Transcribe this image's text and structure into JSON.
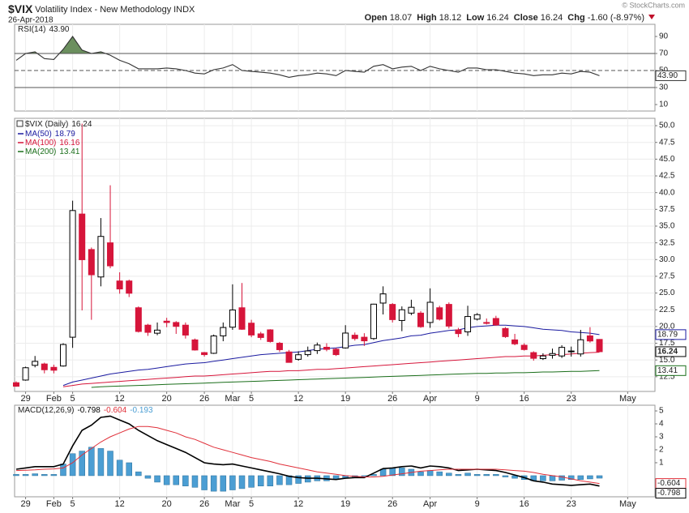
{
  "header": {
    "symbol": "$VIX",
    "name": "Volatility Index - New Methodology",
    "exchange": "INDX",
    "date": "26-Apr-2018",
    "quote": [
      {
        "label": "Open",
        "value": "18.07"
      },
      {
        "label": "High",
        "value": "18.12"
      },
      {
        "label": "Low",
        "value": "16.24"
      },
      {
        "label": "Close",
        "value": "16.24"
      },
      {
        "label": "Chg",
        "value": "-1.60 (-8.97%)"
      }
    ],
    "copyright": "© StockCharts.com"
  },
  "chart_data": [
    {
      "type": "line",
      "title": "RSI(14)",
      "values": [
        62,
        70,
        72,
        64,
        63,
        75,
        90,
        74,
        70,
        72,
        68,
        62,
        58,
        52,
        52,
        52,
        53,
        52,
        50,
        47,
        46,
        51,
        53,
        57,
        50,
        49,
        48,
        47,
        45,
        42,
        44,
        45,
        47,
        46,
        44,
        50,
        49,
        48,
        55,
        57,
        52,
        54,
        55,
        50,
        55,
        52,
        50,
        48,
        53,
        53,
        51,
        51,
        49,
        47,
        46,
        44,
        45,
        45,
        47,
        46,
        49,
        48,
        43.9
      ],
      "value_labels": [
        null,
        null,
        null,
        null,
        null,
        null,
        null,
        null,
        null,
        null,
        null,
        null,
        null,
        null,
        null,
        null,
        null,
        null,
        null,
        null,
        null,
        null,
        null,
        null,
        null,
        null,
        null,
        null,
        null,
        null,
        null,
        null,
        null,
        null,
        null,
        null,
        null,
        null,
        null,
        null,
        null,
        null,
        null,
        null,
        null,
        null,
        null,
        null,
        null,
        null,
        null,
        null,
        null,
        null,
        null,
        null,
        null,
        null,
        null,
        null,
        null,
        null,
        "43.90"
      ],
      "color": "#333333",
      "fill_color": "#6b8f5e",
      "ylim": [
        2.4,
        104.3
      ],
      "yticks": [
        90,
        70,
        50,
        30,
        10
      ],
      "bands": [
        70,
        30
      ],
      "midline": 50
    },
    {
      "type": "candlestick",
      "series": [
        {
          "name": "$VIX (Daily)",
          "up_color": "#000000",
          "down_color": "#d6153a",
          "open": [
            11.6,
            12.0,
            14.2,
            14.4,
            13.9,
            14.1,
            18.4,
            36.8,
            31.5,
            27.4,
            32.5,
            26.8,
            26.8,
            22.8,
            20.2,
            19.0,
            20.8,
            20.6,
            20.2,
            18.0,
            16.1,
            16.0,
            18.6,
            19.9,
            22.8,
            20.5,
            18.9,
            19.5,
            17.5,
            16.2,
            15.1,
            15.8,
            16.4,
            16.9,
            16.6,
            16.8,
            18.7,
            18.4,
            18.2,
            23.5,
            23.3,
            20.9,
            22.0,
            22.0,
            20.6,
            22.8,
            23.3,
            19.5,
            19.2,
            21.1,
            20.6,
            21.2,
            19.7,
            18.0,
            17.2,
            16.1,
            15.2,
            15.7,
            15.6,
            16.3,
            15.9,
            18.6,
            18.07
          ],
          "high": [
            11.8,
            14.0,
            15.6,
            14.6,
            14.3,
            17.5,
            38.8,
            50.3,
            31.8,
            36.2,
            41.1,
            28.1,
            27.0,
            23.0,
            20.4,
            20.6,
            21.3,
            20.8,
            20.6,
            18.2,
            16.2,
            18.8,
            20.6,
            26.3,
            26.5,
            21.0,
            19.2,
            19.6,
            17.7,
            16.5,
            16.3,
            17.0,
            17.6,
            17.5,
            16.8,
            20.2,
            19.1,
            19.0,
            23.4,
            26.0,
            23.5,
            23.0,
            24.0,
            22.3,
            25.7,
            23.1,
            23.6,
            19.8,
            23.1,
            22.0,
            21.2,
            21.6,
            19.9,
            18.9,
            17.5,
            16.3,
            16.0,
            16.7,
            17.2,
            17.0,
            19.5,
            19.9,
            18.12
          ],
          "low": [
            11.0,
            11.9,
            13.9,
            13.0,
            13.0,
            14.0,
            16.8,
            22.4,
            21.0,
            26.0,
            28.7,
            24.9,
            24.4,
            19.1,
            18.6,
            18.7,
            19.9,
            18.9,
            18.2,
            16.4,
            15.5,
            15.9,
            17.8,
            19.5,
            19.5,
            18.4,
            18.0,
            17.6,
            16.2,
            14.6,
            14.9,
            15.5,
            15.9,
            16.3,
            15.6,
            16.7,
            17.9,
            17.1,
            18.0,
            21.8,
            20.6,
            19.3,
            21.7,
            19.8,
            19.8,
            20.9,
            19.7,
            18.4,
            18.6,
            20.9,
            20.3,
            20.1,
            18.3,
            17.2,
            16.4,
            14.9,
            15.0,
            15.2,
            15.3,
            15.5,
            15.5,
            17.6,
            16.24
          ],
          "close": [
            11.08,
            13.84,
            14.79,
            13.54,
            13.47,
            17.31,
            37.32,
            29.98,
            27.73,
            33.46,
            29.06,
            25.61,
            24.97,
            19.26,
            19.13,
            19.46,
            20.6,
            20.02,
            18.72,
            16.49,
            15.8,
            18.59,
            19.85,
            22.47,
            19.59,
            18.73,
            18.36,
            17.76,
            16.54,
            14.64,
            15.78,
            16.35,
            17.23,
            16.59,
            15.8,
            19.02,
            18.2,
            17.86,
            23.34,
            24.87,
            21.03,
            22.5,
            22.87,
            19.97,
            23.62,
            21.1,
            20.06,
            18.94,
            21.49,
            21.77,
            20.47,
            20.24,
            18.49,
            17.41,
            16.56,
            15.25,
            15.6,
            15.96,
            16.88,
            16.34,
            18.02,
            17.84,
            16.24
          ]
        },
        {
          "name": "MA(50)",
          "color": "#1a1aa0",
          "values": [
            null,
            null,
            null,
            null,
            null,
            11.2,
            11.7,
            12.0,
            12.3,
            12.6,
            12.9,
            13.1,
            13.3,
            13.5,
            13.6,
            13.8,
            14.0,
            14.2,
            14.4,
            14.5,
            14.6,
            14.8,
            15.0,
            15.2,
            15.4,
            15.6,
            15.8,
            15.9,
            16.0,
            16.1,
            16.2,
            16.4,
            16.6,
            16.7,
            16.8,
            17.0,
            17.2,
            17.3,
            17.6,
            17.9,
            18.1,
            18.3,
            18.6,
            18.7,
            19.0,
            19.2,
            19.4,
            19.5,
            19.8,
            20.0,
            20.1,
            20.2,
            20.2,
            20.1,
            20.0,
            19.8,
            19.6,
            19.5,
            19.4,
            19.2,
            19.1,
            19.0,
            18.79
          ]
        },
        {
          "name": "MA(100)",
          "color": "#d6153a",
          "values": [
            null,
            null,
            null,
            null,
            null,
            11.0,
            11.2,
            11.4,
            11.5,
            11.6,
            11.7,
            11.8,
            11.9,
            12.0,
            12.1,
            12.2,
            12.3,
            12.4,
            12.5,
            12.6,
            12.6,
            12.7,
            12.8,
            12.9,
            13.0,
            13.1,
            13.2,
            13.3,
            13.3,
            13.4,
            13.4,
            13.5,
            13.6,
            13.6,
            13.7,
            13.8,
            13.9,
            14.0,
            14.1,
            14.2,
            14.3,
            14.4,
            14.5,
            14.6,
            14.7,
            14.8,
            14.9,
            15.0,
            15.1,
            15.2,
            15.3,
            15.4,
            15.5,
            15.5,
            15.6,
            15.6,
            15.7,
            15.8,
            15.8,
            15.9,
            16.0,
            16.1,
            16.16
          ]
        },
        {
          "name": "MA(200)",
          "color": "#1a6e1a",
          "values": [
            null,
            null,
            null,
            null,
            null,
            null,
            null,
            null,
            10.9,
            11.0,
            11.05,
            11.1,
            11.15,
            11.2,
            11.25,
            11.3,
            11.35,
            11.4,
            11.45,
            11.5,
            11.55,
            11.6,
            11.65,
            11.7,
            11.75,
            11.8,
            11.85,
            11.9,
            11.95,
            12.0,
            12.05,
            12.1,
            12.15,
            12.2,
            12.25,
            12.3,
            12.35,
            12.4,
            12.45,
            12.5,
            12.55,
            12.6,
            12.65,
            12.7,
            12.75,
            12.8,
            12.85,
            12.9,
            12.95,
            13.0,
            13.0,
            13.05,
            13.05,
            13.1,
            13.1,
            13.15,
            13.2,
            13.2,
            13.25,
            13.3,
            13.3,
            13.35,
            13.41
          ]
        }
      ],
      "ylim": [
        10.3,
        51.1
      ],
      "yticks": [
        12.5,
        {
          "value": 15,
          "label": "15.0"
        },
        17.5,
        {
          "value": 20,
          "label": "20.0"
        },
        22.5,
        {
          "value": 25,
          "label": "25.0"
        },
        27.5,
        {
          "value": 30,
          "label": "30.0"
        },
        32.5,
        {
          "value": 35,
          "label": "35.0"
        },
        37.5,
        {
          "value": 40,
          "label": "40.0"
        },
        42.5,
        {
          "value": 45,
          "label": "45.0"
        },
        47.5,
        {
          "value": 50,
          "label": "50.0"
        }
      ],
      "xlim": [
        -0.17,
        67.9
      ],
      "xticks": [
        {
          "value": 1,
          "label": "29"
        },
        {
          "value": 4,
          "label": "Feb"
        },
        {
          "value": 6,
          "label": "5"
        },
        {
          "value": 11,
          "label": "12"
        },
        {
          "value": 16,
          "label": "20"
        },
        {
          "value": 20,
          "label": "26"
        },
        {
          "value": 23,
          "label": "Mar"
        },
        {
          "value": 25,
          "label": "5"
        },
        {
          "value": 30,
          "label": "12"
        },
        {
          "value": 35,
          "label": "19"
        },
        {
          "value": 40,
          "label": "26"
        },
        {
          "value": 44,
          "label": "Apr"
        },
        {
          "value": 49,
          "label": "9"
        },
        {
          "value": 54,
          "label": "16"
        },
        {
          "value": 59,
          "label": "23"
        },
        {
          "value": 65,
          "label": "May"
        }
      ],
      "grid": true
    },
    {
      "type": "macd",
      "title": "MACD(12,26,9)",
      "series": [
        {
          "color": "#000000",
          "values": [
            0.5,
            0.6,
            0.7,
            0.7,
            0.7,
            0.9,
            2.3,
            3.5,
            3.9,
            4.5,
            4.6,
            4.3,
            4.0,
            3.5,
            3.1,
            2.7,
            2.4,
            2.1,
            1.8,
            1.4,
            1.0,
            0.9,
            0.85,
            0.9,
            0.75,
            0.6,
            0.45,
            0.3,
            0.15,
            -0.05,
            -0.15,
            -0.2,
            -0.2,
            -0.25,
            -0.3,
            -0.2,
            -0.15,
            -0.15,
            0.2,
            0.55,
            0.6,
            0.7,
            0.75,
            0.6,
            0.75,
            0.7,
            0.6,
            0.4,
            0.45,
            0.5,
            0.45,
            0.4,
            0.25,
            0.05,
            -0.15,
            -0.4,
            -0.5,
            -0.65,
            -0.7,
            -0.75,
            -0.7,
            -0.65,
            -0.798
          ]
        },
        {
          "color": "#e0303a",
          "values": [
            0.4,
            0.42,
            0.45,
            0.5,
            0.52,
            0.6,
            1.0,
            1.6,
            2.1,
            2.6,
            3.0,
            3.3,
            3.6,
            3.8,
            3.8,
            3.7,
            3.5,
            3.3,
            3.0,
            2.8,
            2.5,
            2.2,
            2.0,
            1.8,
            1.6,
            1.4,
            1.25,
            1.1,
            0.9,
            0.75,
            0.6,
            0.45,
            0.3,
            0.2,
            0.1,
            0.0,
            -0.05,
            -0.1,
            -0.1,
            -0.05,
            0.05,
            0.15,
            0.25,
            0.35,
            0.4,
            0.45,
            0.5,
            0.5,
            0.5,
            0.5,
            0.5,
            0.5,
            0.45,
            0.4,
            0.35,
            0.25,
            0.1,
            0.0,
            -0.1,
            -0.25,
            -0.4,
            -0.5,
            -0.604
          ]
        },
        {
          "type": "bar",
          "color": "#4b9ed3",
          "values": [
            0.1,
            0.1,
            0.15,
            0.1,
            0.1,
            0.9,
            1.7,
            1.9,
            2.2,
            2.1,
            1.9,
            1.2,
            1.0,
            0.3,
            -0.2,
            -0.5,
            -0.7,
            -0.7,
            -0.8,
            -0.9,
            -1.1,
            -1.2,
            -1.2,
            -1.1,
            -1.0,
            -0.9,
            -0.8,
            -0.8,
            -0.7,
            -0.7,
            -0.6,
            -0.5,
            -0.4,
            -0.4,
            -0.3,
            -0.2,
            -0.1,
            -0.1,
            0.1,
            0.5,
            0.6,
            0.6,
            0.5,
            0.3,
            0.4,
            0.3,
            0.2,
            0.1,
            0.2,
            0.1,
            0.1,
            0.1,
            -0.1,
            -0.2,
            -0.3,
            -0.4,
            -0.4,
            -0.4,
            -0.35,
            -0.3,
            -0.3,
            -0.25,
            -0.193
          ]
        }
      ],
      "ylim": [
        -1.63,
        5.44
      ],
      "yticks": [
        5,
        4,
        3,
        2,
        1
      ]
    }
  ]
}
